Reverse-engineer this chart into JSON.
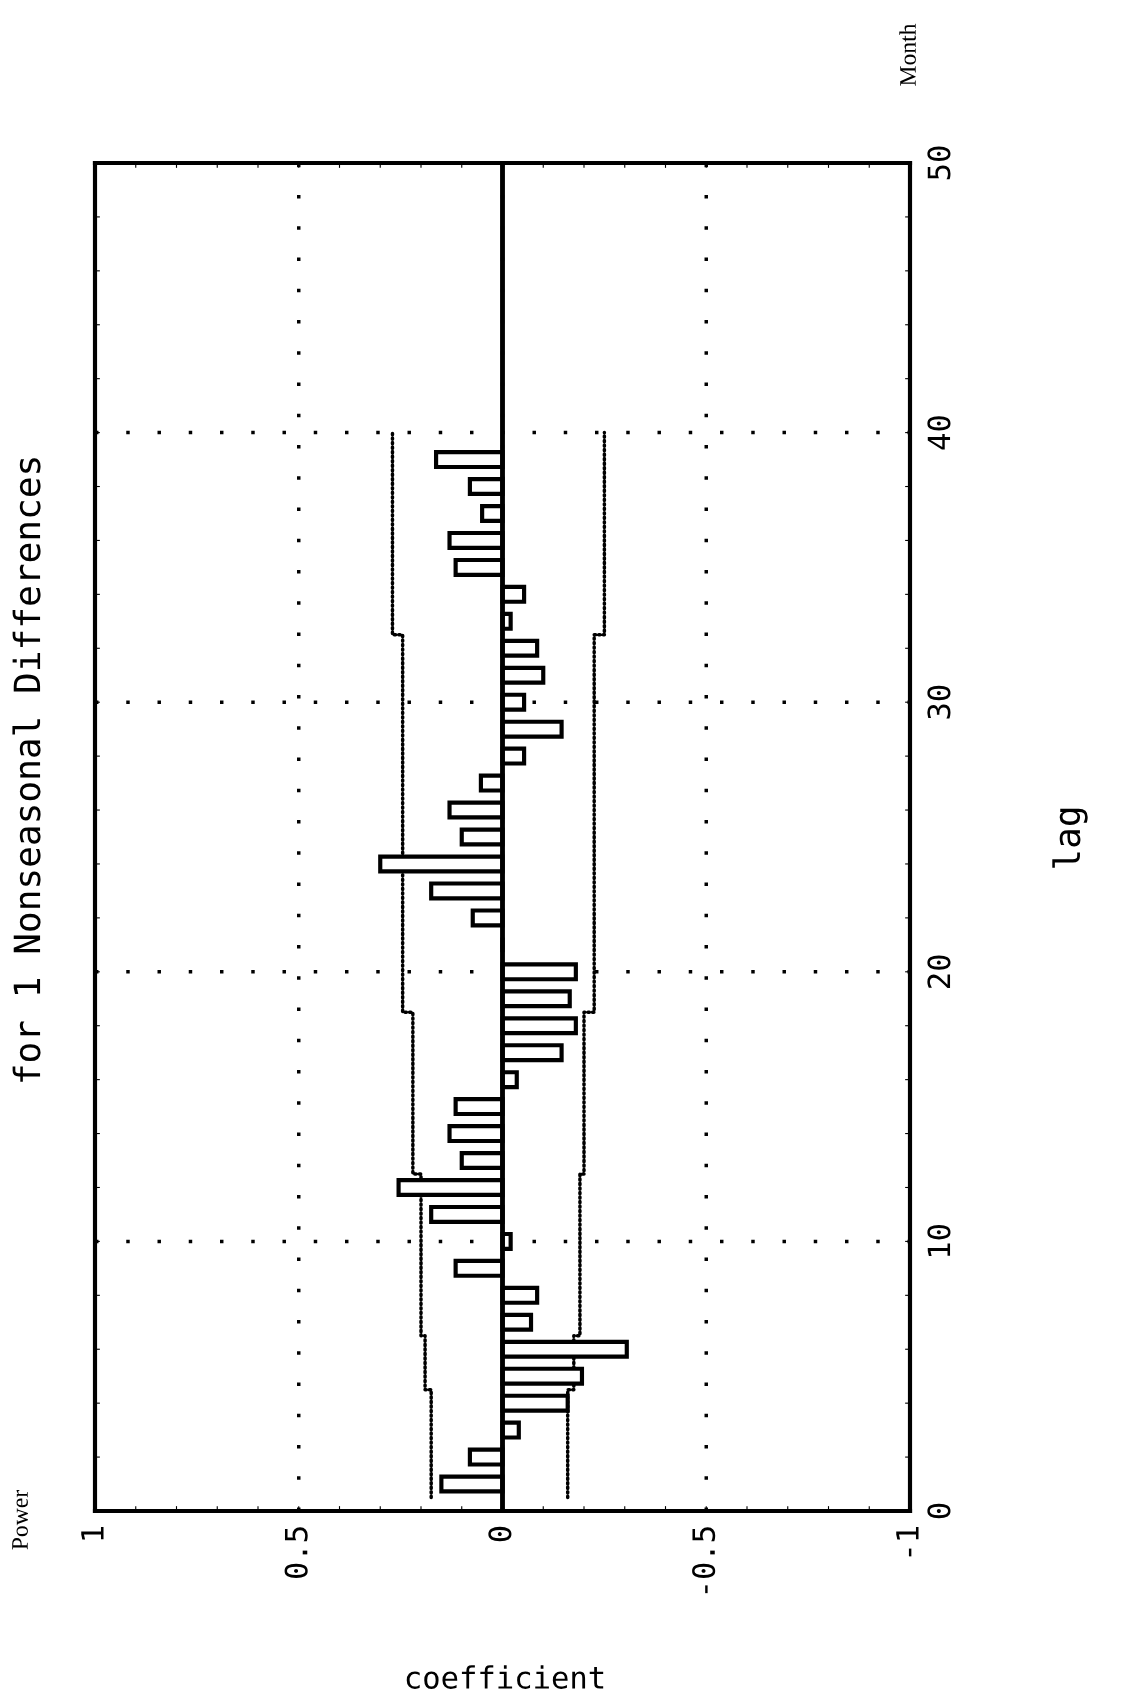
{
  "chart_data": {
    "type": "bar",
    "orientation": "horizontal",
    "title": "for 1 Nonseasonal Differences",
    "xlabel": "coefficient",
    "ylabel": "lag",
    "annotations": [
      "Power",
      "Month"
    ],
    "series": [
      {
        "color": "#000000",
        "x": [
          1,
          2,
          3,
          4,
          5,
          6,
          7,
          8,
          9,
          10,
          11,
          12,
          13,
          14,
          15,
          16,
          17,
          18,
          19,
          20,
          21,
          22,
          23,
          24,
          25,
          26,
          27,
          28,
          29,
          30,
          31,
          32,
          33,
          34,
          35,
          36,
          37,
          38,
          39
        ],
        "values": [
          0.15,
          0.08,
          -0.04,
          -0.16,
          -0.195,
          -0.305,
          -0.07,
          -0.085,
          0.115,
          -0.02,
          0.175,
          0.255,
          0.1,
          0.13,
          0.115,
          -0.035,
          -0.145,
          -0.18,
          -0.165,
          -0.18,
          0.0,
          0.073,
          0.175,
          0.3,
          0.1,
          0.13,
          0.053,
          -0.053,
          -0.145,
          -0.053,
          -0.1,
          -0.085,
          -0.02,
          -0.053,
          0.115,
          0.13,
          0.05,
          0.08,
          0.163
        ]
      },
      {
        "type": "step",
        "color": "#000000",
        "line_style": "dotted",
        "x": [
          0.5,
          4.5,
          6.5,
          12.5,
          18.5,
          32.5,
          40
        ],
        "values": [
          0.175,
          0.19,
          0.2,
          0.22,
          0.245,
          0.27,
          0.27
        ]
      },
      {
        "type": "step",
        "color": "#000000",
        "line_style": "dotted",
        "x": [
          0.5,
          4.5,
          6.5,
          12.5,
          18.5,
          32.5,
          40
        ],
        "values": [
          -0.16,
          -0.175,
          -0.19,
          -0.2,
          -0.225,
          -0.25,
          -0.25
        ]
      }
    ],
    "ref_lines": [
      {
        "axis": "x",
        "value": 0,
        "color": "#000000",
        "line_style": "solid"
      }
    ],
    "xlim": [
      1,
      -1
    ],
    "xticks": [
      1,
      {
        "value": 0.9,
        "label": null
      },
      {
        "value": 0.8,
        "label": null
      },
      {
        "value": 0.7,
        "label": null
      },
      {
        "value": 0.6,
        "label": null
      },
      0.5,
      {
        "value": 0.4,
        "label": null
      },
      {
        "value": 0.3,
        "label": null
      },
      {
        "value": 0.2,
        "label": null
      },
      {
        "value": 0.1,
        "label": null
      },
      0,
      {
        "value": -0.1,
        "label": null
      },
      {
        "value": -0.2,
        "label": null
      },
      {
        "value": -0.3,
        "label": null
      },
      {
        "value": -0.4,
        "label": null
      },
      -0.5,
      {
        "value": -0.6,
        "label": null
      },
      {
        "value": -0.7,
        "label": null
      },
      {
        "value": -0.8,
        "label": null
      },
      {
        "value": -0.9,
        "label": null
      },
      -1
    ],
    "ylim": [
      0,
      50
    ],
    "yticks": [
      0,
      {
        "value": 2,
        "label": null
      },
      {
        "value": 4,
        "label": null
      },
      {
        "value": 6,
        "label": null
      },
      {
        "value": 8,
        "label": null
      },
      10,
      {
        "value": 12,
        "label": null
      },
      {
        "value": 14,
        "label": null
      },
      {
        "value": 16,
        "label": null
      },
      {
        "value": 18,
        "label": null
      },
      20,
      {
        "value": 22,
        "label": null
      },
      {
        "value": 24,
        "label": null
      },
      {
        "value": 26,
        "label": null
      },
      {
        "value": 28,
        "label": null
      },
      30,
      {
        "value": 32,
        "label": null
      },
      {
        "value": 34,
        "label": null
      },
      {
        "value": 36,
        "label": null
      },
      {
        "value": 38,
        "label": null
      },
      40,
      {
        "value": 42,
        "label": null
      },
      {
        "value": 44,
        "label": null
      },
      {
        "value": 46,
        "label": null
      },
      {
        "value": 48,
        "label": null
      },
      50
    ],
    "grid": true
  }
}
